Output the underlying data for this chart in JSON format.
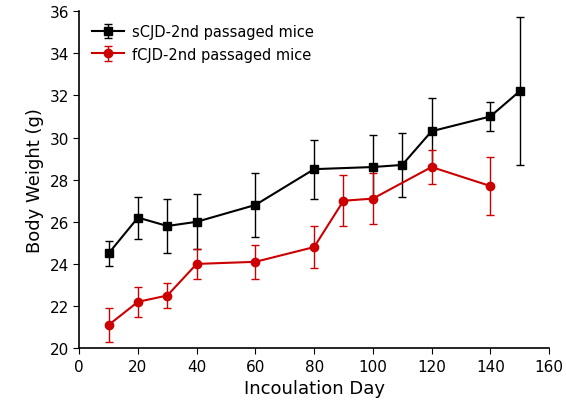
{
  "scjd_x": [
    10,
    20,
    30,
    40,
    60,
    80,
    100,
    110,
    120,
    140,
    150
  ],
  "scjd_y": [
    24.5,
    26.2,
    25.8,
    26.0,
    26.8,
    28.5,
    28.6,
    28.7,
    30.3,
    31.0,
    32.2
  ],
  "scjd_yerr": [
    0.6,
    1.0,
    1.3,
    1.3,
    1.5,
    1.4,
    1.5,
    1.5,
    1.6,
    0.7,
    3.5
  ],
  "fcjd_x": [
    10,
    20,
    30,
    40,
    60,
    80,
    90,
    100,
    120,
    140
  ],
  "fcjd_y": [
    21.1,
    22.2,
    22.5,
    24.0,
    24.1,
    24.8,
    27.0,
    27.1,
    28.6,
    27.7
  ],
  "fcjd_yerr": [
    0.8,
    0.7,
    0.6,
    0.7,
    0.8,
    1.0,
    1.2,
    1.2,
    0.8,
    1.4
  ],
  "xlabel": "Incoulation Day",
  "ylabel": "Body Weight (g)",
  "scjd_label": "sCJD-2nd passaged mice",
  "fcjd_label": "fCJD-2nd passaged mice",
  "scjd_color": "#000000",
  "fcjd_color": "#cc0000",
  "xlim": [
    0,
    160
  ],
  "ylim": [
    20,
    36
  ],
  "xticks": [
    0,
    20,
    40,
    60,
    80,
    100,
    120,
    140,
    160
  ],
  "yticks": [
    20,
    22,
    24,
    26,
    28,
    30,
    32,
    34,
    36
  ],
  "bg_color": "#ffffff",
  "tick_labelsize": 11,
  "xlabel_fontsize": 13,
  "ylabel_fontsize": 13,
  "legend_fontsize": 10.5
}
